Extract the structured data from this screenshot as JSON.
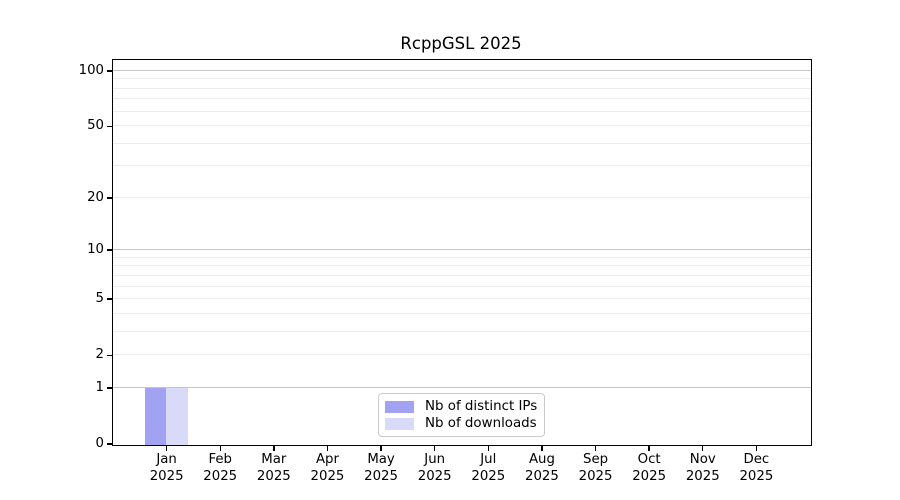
{
  "window": {
    "background": "#ffffff"
  },
  "chart_data": {
    "type": "bar",
    "title": "RcppGSL 2025",
    "categories": [
      "Jan 2025",
      "Feb 2025",
      "Mar 2025",
      "Apr 2025",
      "May 2025",
      "Jun 2025",
      "Jul 2025",
      "Aug 2025",
      "Sep 2025",
      "Oct 2025",
      "Nov 2025",
      "Dec 2025"
    ],
    "x_tick_month_lines": [
      "Jan",
      "Feb",
      "Mar",
      "Apr",
      "May",
      "Jun",
      "Jul",
      "Aug",
      "Sep",
      "Oct",
      "Nov",
      "Dec"
    ],
    "x_tick_year_line": "2025",
    "series": [
      {
        "name": "Nb of distinct IPs",
        "color": "#a2a2f2",
        "values": [
          1,
          0,
          0,
          0,
          0,
          0,
          0,
          0,
          0,
          0,
          0,
          0
        ]
      },
      {
        "name": "Nb of downloads",
        "color": "#d9d9f8",
        "values": [
          1,
          0,
          0,
          0,
          0,
          0,
          0,
          0,
          0,
          0,
          0,
          0
        ]
      }
    ],
    "y_axis": {
      "scale": "log1p",
      "tick_labels": [
        "0",
        "1",
        "2",
        "5",
        "10",
        "20",
        "50",
        "100"
      ],
      "tick_values": [
        0,
        1,
        2,
        5,
        10,
        20,
        50,
        100
      ],
      "gridline_values_major": [
        1,
        10,
        100
      ],
      "gridline_values_minor": [
        2,
        3,
        4,
        5,
        6,
        7,
        8,
        9,
        20,
        30,
        40,
        50,
        60,
        70,
        80,
        90
      ],
      "range_max": 115
    },
    "legend": {
      "position": "lower-center",
      "entries": [
        "Nb of distinct IPs",
        "Nb of downloads"
      ]
    },
    "xlabel": "",
    "ylabel": "",
    "grid": "horizontal"
  },
  "colors": {
    "axis_frame": "#000000",
    "tick_text": "#000000",
    "grid_major": "#c4c4c4",
    "grid_minor": "#ececec",
    "legend_border": "#cccccc",
    "legend_background": "#ffffff",
    "bar_distinct_ips": "#a2a2f2",
    "bar_downloads": "#d9d9f8"
  }
}
